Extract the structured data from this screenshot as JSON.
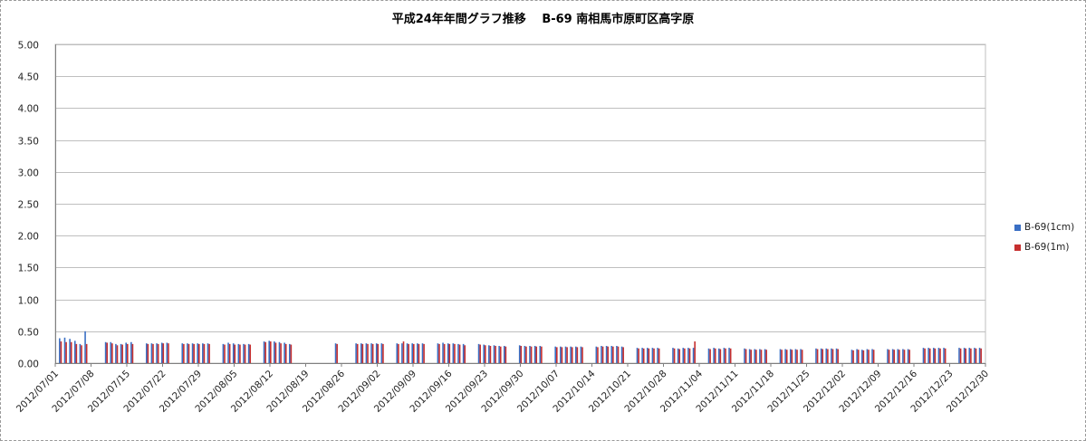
{
  "chart_data": {
    "type": "bar",
    "title": "平成24年年間グラフ推移　 B-69 南相馬市原町区高字原",
    "xlabel": "",
    "ylabel": "",
    "ylim": [
      0,
      5.0
    ],
    "yticks": [
      "0.00",
      "0.50",
      "1.00",
      "1.50",
      "2.00",
      "2.50",
      "3.00",
      "3.50",
      "4.00",
      "4.50",
      "5.00"
    ],
    "grid": true,
    "legend_position": "right",
    "x_range": [
      "2012/07/01",
      "2012/12/30"
    ],
    "xticks": [
      "2012/07/01",
      "2012/07/08",
      "2012/07/15",
      "2012/07/22",
      "2012/07/29",
      "2012/08/05",
      "2012/08/12",
      "2012/08/19",
      "2012/08/26",
      "2012/09/02",
      "2012/09/09",
      "2012/09/16",
      "2012/09/23",
      "2012/09/30",
      "2012/10/07",
      "2012/10/14",
      "2012/10/21",
      "2012/10/28",
      "2012/11/04",
      "2012/11/11",
      "2012/11/18",
      "2012/11/25",
      "2012/12/02",
      "2012/12/09",
      "2012/12/16",
      "2012/12/23",
      "2012/12/30"
    ],
    "series": [
      {
        "name": "B-69(1cm)",
        "color": "#3a6fc4",
        "points": [
          [
            "2012/07/02",
            0.39
          ],
          [
            "2012/07/03",
            0.4
          ],
          [
            "2012/07/04",
            0.38
          ],
          [
            "2012/07/05",
            0.35
          ],
          [
            "2012/07/06",
            0.3
          ],
          [
            "2012/07/07",
            0.5
          ],
          [
            "2012/07/11",
            0.33
          ],
          [
            "2012/07/12",
            0.33
          ],
          [
            "2012/07/13",
            0.3
          ],
          [
            "2012/07/14",
            0.3
          ],
          [
            "2012/07/15",
            0.32
          ],
          [
            "2012/07/16",
            0.33
          ],
          [
            "2012/07/19",
            0.31
          ],
          [
            "2012/07/20",
            0.31
          ],
          [
            "2012/07/21",
            0.31
          ],
          [
            "2012/07/22",
            0.32
          ],
          [
            "2012/07/23",
            0.32
          ],
          [
            "2012/07/26",
            0.31
          ],
          [
            "2012/07/27",
            0.31
          ],
          [
            "2012/07/28",
            0.31
          ],
          [
            "2012/07/29",
            0.31
          ],
          [
            "2012/07/30",
            0.31
          ],
          [
            "2012/07/31",
            0.31
          ],
          [
            "2012/08/03",
            0.3
          ],
          [
            "2012/08/04",
            0.32
          ],
          [
            "2012/08/05",
            0.31
          ],
          [
            "2012/08/06",
            0.3
          ],
          [
            "2012/08/07",
            0.3
          ],
          [
            "2012/08/08",
            0.3
          ],
          [
            "2012/08/11",
            0.34
          ],
          [
            "2012/08/12",
            0.35
          ],
          [
            "2012/08/13",
            0.34
          ],
          [
            "2012/08/14",
            0.33
          ],
          [
            "2012/08/15",
            0.32
          ],
          [
            "2012/08/16",
            0.3
          ],
          [
            "2012/08/25",
            0.31
          ],
          [
            "2012/08/29",
            0.31
          ],
          [
            "2012/08/30",
            0.31
          ],
          [
            "2012/08/31",
            0.31
          ],
          [
            "2012/09/01",
            0.31
          ],
          [
            "2012/09/02",
            0.31
          ],
          [
            "2012/09/03",
            0.31
          ],
          [
            "2012/09/06",
            0.31
          ],
          [
            "2012/09/07",
            0.31
          ],
          [
            "2012/09/08",
            0.31
          ],
          [
            "2012/09/09",
            0.31
          ],
          [
            "2012/09/10",
            0.31
          ],
          [
            "2012/09/11",
            0.31
          ],
          [
            "2012/09/14",
            0.31
          ],
          [
            "2012/09/15",
            0.32
          ],
          [
            "2012/09/16",
            0.31
          ],
          [
            "2012/09/17",
            0.31
          ],
          [
            "2012/09/18",
            0.3
          ],
          [
            "2012/09/19",
            0.3
          ],
          [
            "2012/09/22",
            0.3
          ],
          [
            "2012/09/23",
            0.29
          ],
          [
            "2012/09/24",
            0.28
          ],
          [
            "2012/09/25",
            0.28
          ],
          [
            "2012/09/26",
            0.27
          ],
          [
            "2012/09/27",
            0.27
          ],
          [
            "2012/09/30",
            0.28
          ],
          [
            "2012/10/01",
            0.27
          ],
          [
            "2012/10/02",
            0.27
          ],
          [
            "2012/10/03",
            0.27
          ],
          [
            "2012/10/04",
            0.27
          ],
          [
            "2012/10/07",
            0.26
          ],
          [
            "2012/10/08",
            0.26
          ],
          [
            "2012/10/09",
            0.26
          ],
          [
            "2012/10/10",
            0.26
          ],
          [
            "2012/10/11",
            0.26
          ],
          [
            "2012/10/12",
            0.26
          ],
          [
            "2012/10/15",
            0.26
          ],
          [
            "2012/10/16",
            0.27
          ],
          [
            "2012/10/17",
            0.27
          ],
          [
            "2012/10/18",
            0.27
          ],
          [
            "2012/10/19",
            0.27
          ],
          [
            "2012/10/20",
            0.26
          ],
          [
            "2012/10/23",
            0.24
          ],
          [
            "2012/10/24",
            0.24
          ],
          [
            "2012/10/25",
            0.24
          ],
          [
            "2012/10/26",
            0.24
          ],
          [
            "2012/10/27",
            0.24
          ],
          [
            "2012/10/30",
            0.24
          ],
          [
            "2012/10/31",
            0.23
          ],
          [
            "2012/11/01",
            0.24
          ],
          [
            "2012/11/02",
            0.24
          ],
          [
            "2012/11/03",
            0.24
          ],
          [
            "2012/11/06",
            0.23
          ],
          [
            "2012/11/07",
            0.24
          ],
          [
            "2012/11/08",
            0.23
          ],
          [
            "2012/11/09",
            0.24
          ],
          [
            "2012/11/10",
            0.24
          ],
          [
            "2012/11/13",
            0.23
          ],
          [
            "2012/11/14",
            0.22
          ],
          [
            "2012/11/15",
            0.22
          ],
          [
            "2012/11/16",
            0.22
          ],
          [
            "2012/11/17",
            0.22
          ],
          [
            "2012/11/20",
            0.22
          ],
          [
            "2012/11/21",
            0.22
          ],
          [
            "2012/11/22",
            0.22
          ],
          [
            "2012/11/23",
            0.22
          ],
          [
            "2012/11/24",
            0.22
          ],
          [
            "2012/11/27",
            0.23
          ],
          [
            "2012/11/28",
            0.23
          ],
          [
            "2012/11/29",
            0.23
          ],
          [
            "2012/11/30",
            0.23
          ],
          [
            "2012/12/01",
            0.23
          ],
          [
            "2012/12/04",
            0.21
          ],
          [
            "2012/12/05",
            0.22
          ],
          [
            "2012/12/06",
            0.21
          ],
          [
            "2012/12/07",
            0.22
          ],
          [
            "2012/12/08",
            0.22
          ],
          [
            "2012/12/11",
            0.22
          ],
          [
            "2012/12/12",
            0.22
          ],
          [
            "2012/12/13",
            0.22
          ],
          [
            "2012/12/14",
            0.22
          ],
          [
            "2012/12/15",
            0.22
          ],
          [
            "2012/12/18",
            0.24
          ],
          [
            "2012/12/19",
            0.24
          ],
          [
            "2012/12/20",
            0.24
          ],
          [
            "2012/12/21",
            0.24
          ],
          [
            "2012/12/22",
            0.24
          ],
          [
            "2012/12/25",
            0.24
          ],
          [
            "2012/12/26",
            0.24
          ],
          [
            "2012/12/27",
            0.24
          ],
          [
            "2012/12/28",
            0.24
          ],
          [
            "2012/12/29",
            0.24
          ]
        ]
      },
      {
        "name": "B-69(1m)",
        "color": "#c62f2f",
        "points": [
          [
            "2012/07/02",
            0.34
          ],
          [
            "2012/07/03",
            0.33
          ],
          [
            "2012/07/04",
            0.33
          ],
          [
            "2012/07/05",
            0.3
          ],
          [
            "2012/07/06",
            0.28
          ],
          [
            "2012/07/07",
            0.3
          ],
          [
            "2012/07/11",
            0.32
          ],
          [
            "2012/07/12",
            0.31
          ],
          [
            "2012/07/13",
            0.28
          ],
          [
            "2012/07/14",
            0.29
          ],
          [
            "2012/07/15",
            0.3
          ],
          [
            "2012/07/16",
            0.3
          ],
          [
            "2012/07/19",
            0.3
          ],
          [
            "2012/07/20",
            0.3
          ],
          [
            "2012/07/21",
            0.3
          ],
          [
            "2012/07/22",
            0.31
          ],
          [
            "2012/07/23",
            0.31
          ],
          [
            "2012/07/26",
            0.3
          ],
          [
            "2012/07/27",
            0.3
          ],
          [
            "2012/07/28",
            0.3
          ],
          [
            "2012/07/29",
            0.3
          ],
          [
            "2012/07/30",
            0.3
          ],
          [
            "2012/07/31",
            0.3
          ],
          [
            "2012/08/03",
            0.29
          ],
          [
            "2012/08/04",
            0.3
          ],
          [
            "2012/08/05",
            0.29
          ],
          [
            "2012/08/06",
            0.29
          ],
          [
            "2012/08/07",
            0.29
          ],
          [
            "2012/08/08",
            0.29
          ],
          [
            "2012/08/11",
            0.33
          ],
          [
            "2012/08/12",
            0.34
          ],
          [
            "2012/08/13",
            0.32
          ],
          [
            "2012/08/14",
            0.31
          ],
          [
            "2012/08/15",
            0.3
          ],
          [
            "2012/08/16",
            0.29
          ],
          [
            "2012/08/25",
            0.3
          ],
          [
            "2012/08/29",
            0.3
          ],
          [
            "2012/08/30",
            0.3
          ],
          [
            "2012/08/31",
            0.3
          ],
          [
            "2012/09/01",
            0.3
          ],
          [
            "2012/09/02",
            0.3
          ],
          [
            "2012/09/03",
            0.3
          ],
          [
            "2012/09/06",
            0.3
          ],
          [
            "2012/09/07",
            0.34
          ],
          [
            "2012/09/08",
            0.3
          ],
          [
            "2012/09/09",
            0.3
          ],
          [
            "2012/09/10",
            0.3
          ],
          [
            "2012/09/11",
            0.3
          ],
          [
            "2012/09/14",
            0.3
          ],
          [
            "2012/09/15",
            0.3
          ],
          [
            "2012/09/16",
            0.3
          ],
          [
            "2012/09/17",
            0.3
          ],
          [
            "2012/09/18",
            0.29
          ],
          [
            "2012/09/19",
            0.28
          ],
          [
            "2012/09/22",
            0.29
          ],
          [
            "2012/09/23",
            0.28
          ],
          [
            "2012/09/24",
            0.27
          ],
          [
            "2012/09/25",
            0.27
          ],
          [
            "2012/09/26",
            0.26
          ],
          [
            "2012/09/27",
            0.26
          ],
          [
            "2012/09/30",
            0.27
          ],
          [
            "2012/10/01",
            0.26
          ],
          [
            "2012/10/02",
            0.26
          ],
          [
            "2012/10/03",
            0.26
          ],
          [
            "2012/10/04",
            0.26
          ],
          [
            "2012/10/07",
            0.25
          ],
          [
            "2012/10/08",
            0.25
          ],
          [
            "2012/10/09",
            0.25
          ],
          [
            "2012/10/10",
            0.25
          ],
          [
            "2012/10/11",
            0.25
          ],
          [
            "2012/10/12",
            0.25
          ],
          [
            "2012/10/15",
            0.25
          ],
          [
            "2012/10/16",
            0.26
          ],
          [
            "2012/10/17",
            0.26
          ],
          [
            "2012/10/18",
            0.26
          ],
          [
            "2012/10/19",
            0.26
          ],
          [
            "2012/10/20",
            0.25
          ],
          [
            "2012/10/23",
            0.23
          ],
          [
            "2012/10/24",
            0.23
          ],
          [
            "2012/10/25",
            0.23
          ],
          [
            "2012/10/26",
            0.23
          ],
          [
            "2012/10/27",
            0.23
          ],
          [
            "2012/10/30",
            0.23
          ],
          [
            "2012/10/31",
            0.22
          ],
          [
            "2012/11/01",
            0.23
          ],
          [
            "2012/11/02",
            0.23
          ],
          [
            "2012/11/03",
            0.34
          ],
          [
            "2012/11/06",
            0.22
          ],
          [
            "2012/11/07",
            0.23
          ],
          [
            "2012/11/08",
            0.22
          ],
          [
            "2012/11/09",
            0.23
          ],
          [
            "2012/11/10",
            0.23
          ],
          [
            "2012/11/13",
            0.22
          ],
          [
            "2012/11/14",
            0.21
          ],
          [
            "2012/11/15",
            0.21
          ],
          [
            "2012/11/16",
            0.21
          ],
          [
            "2012/11/17",
            0.21
          ],
          [
            "2012/11/20",
            0.21
          ],
          [
            "2012/11/21",
            0.21
          ],
          [
            "2012/11/22",
            0.21
          ],
          [
            "2012/11/23",
            0.21
          ],
          [
            "2012/11/24",
            0.21
          ],
          [
            "2012/11/27",
            0.22
          ],
          [
            "2012/11/28",
            0.22
          ],
          [
            "2012/11/29",
            0.22
          ],
          [
            "2012/11/30",
            0.22
          ],
          [
            "2012/12/01",
            0.22
          ],
          [
            "2012/12/04",
            0.2
          ],
          [
            "2012/12/05",
            0.21
          ],
          [
            "2012/12/06",
            0.2
          ],
          [
            "2012/12/07",
            0.21
          ],
          [
            "2012/12/08",
            0.21
          ],
          [
            "2012/12/11",
            0.21
          ],
          [
            "2012/12/12",
            0.21
          ],
          [
            "2012/12/13",
            0.21
          ],
          [
            "2012/12/14",
            0.21
          ],
          [
            "2012/12/15",
            0.21
          ],
          [
            "2012/12/18",
            0.23
          ],
          [
            "2012/12/19",
            0.23
          ],
          [
            "2012/12/20",
            0.23
          ],
          [
            "2012/12/21",
            0.23
          ],
          [
            "2012/12/22",
            0.23
          ],
          [
            "2012/12/25",
            0.23
          ],
          [
            "2012/12/26",
            0.23
          ],
          [
            "2012/12/27",
            0.23
          ],
          [
            "2012/12/28",
            0.23
          ],
          [
            "2012/12/29",
            0.23
          ]
        ]
      }
    ]
  }
}
